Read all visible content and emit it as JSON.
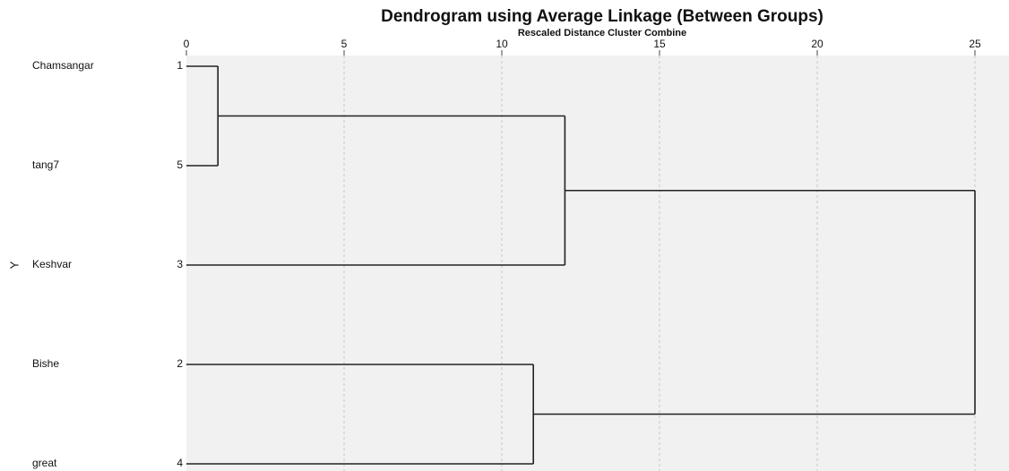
{
  "chart_data": {
    "type": "dendrogram",
    "title": "Dendrogram using Average Linkage (Between Groups)",
    "subtitle": "Rescaled Distance Cluster Combine",
    "y_label": "Y",
    "xlim": [
      0,
      26
    ],
    "xticks": [
      0,
      5,
      10,
      15,
      20,
      25
    ],
    "grid": true,
    "color": "#222222",
    "leaves": [
      {
        "label": "Chamsangar",
        "case": 1
      },
      {
        "label": "tang7",
        "case": 5
      },
      {
        "label": "Keshvar",
        "case": 3
      },
      {
        "label": "Bishe",
        "case": 2
      },
      {
        "label": "great",
        "case": 4
      }
    ],
    "tree": {
      "distance": 25,
      "children": [
        {
          "distance": 12,
          "children": [
            {
              "distance": 1,
              "children": [
                1,
                5
              ]
            },
            3
          ]
        },
        {
          "distance": 11,
          "children": [
            2,
            4
          ]
        }
      ]
    }
  }
}
